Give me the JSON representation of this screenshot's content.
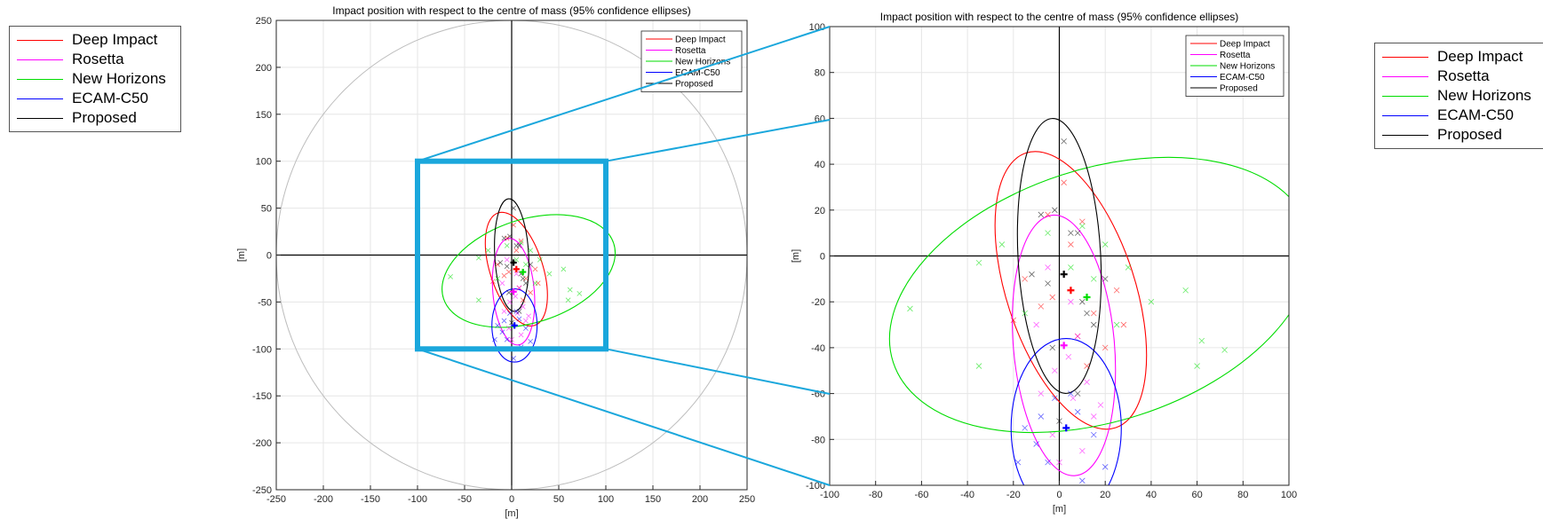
{
  "legend_entries": [
    {
      "name": "Deep Impact",
      "color": "#ff0000"
    },
    {
      "name": "Rosetta",
      "color": "#ff00ff"
    },
    {
      "name": "New Horizons",
      "color": "#00dd00"
    },
    {
      "name": "ECAM-C50",
      "color": "#0000ff"
    },
    {
      "name": "Proposed",
      "color": "#000000"
    }
  ],
  "chart_data": [
    {
      "type": "scatter",
      "title": "Impact position with respect to the centre of mass (95% confidence ellipses)",
      "xlabel": "[m]",
      "ylabel": "[m]",
      "xlim": [
        -250,
        250
      ],
      "ylim": [
        -250,
        250
      ],
      "xticks": [
        -250,
        -200,
        -150,
        -100,
        -50,
        0,
        50,
        100,
        150,
        200,
        250
      ],
      "yticks": [
        -250,
        -200,
        -150,
        -100,
        -50,
        0,
        50,
        100,
        150,
        200,
        250
      ],
      "grid": true,
      "legend_position": "top-right",
      "boundary_circle": {
        "cx": 0,
        "cy": 0,
        "r": 250
      },
      "zoom_box": [
        -100,
        100,
        -100,
        100
      ],
      "series": [
        {
          "name": "Deep Impact",
          "color": "#ff0000",
          "mean": [
            5,
            -15
          ],
          "ellipse": {
            "cx": 5,
            "cy": -15,
            "rx": 28,
            "ry": 63,
            "angle": -18
          },
          "points": [
            [
              2,
              32
            ],
            [
              -5,
              18
            ],
            [
              10,
              15
            ],
            [
              -15,
              -10
            ],
            [
              25,
              -15
            ],
            [
              15,
              -25
            ],
            [
              20,
              -40
            ],
            [
              -8,
              -22
            ],
            [
              8,
              -35
            ],
            [
              -20,
              -28
            ],
            [
              28,
              -30
            ],
            [
              12,
              -48
            ],
            [
              5,
              5
            ],
            [
              -3,
              -18
            ]
          ]
        },
        {
          "name": "Rosetta",
          "color": "#ff00ff",
          "mean": [
            2,
            -39
          ],
          "ellipse": {
            "cx": 2,
            "cy": -39,
            "rx": 22,
            "ry": 57,
            "angle": -5
          },
          "points": [
            [
              -5,
              -5
            ],
            [
              5,
              -20
            ],
            [
              -10,
              -30
            ],
            [
              8,
              -35
            ],
            [
              -2,
              -50
            ],
            [
              12,
              -55
            ],
            [
              6,
              -62
            ],
            [
              15,
              -70
            ],
            [
              -3,
              -78
            ],
            [
              10,
              -85
            ],
            [
              0,
              -90
            ],
            [
              18,
              -65
            ],
            [
              4,
              -44
            ],
            [
              -8,
              -60
            ]
          ]
        },
        {
          "name": "New Horizons",
          "color": "#00dd00",
          "mean": [
            12,
            -18
          ],
          "ellipse": {
            "cx": 18,
            "cy": -17,
            "rx": 95,
            "ry": 55,
            "angle": -18
          },
          "points": [
            [
              -65,
              -23
            ],
            [
              -35,
              -3
            ],
            [
              -25,
              5
            ],
            [
              -15,
              -25
            ],
            [
              40,
              -20
            ],
            [
              55,
              -15
            ],
            [
              62,
              -37
            ],
            [
              72,
              -41
            ],
            [
              60,
              -48
            ],
            [
              -35,
              -48
            ],
            [
              25,
              -30
            ],
            [
              15,
              -10
            ],
            [
              30,
              -5
            ],
            [
              -5,
              10
            ],
            [
              10,
              13
            ],
            [
              5,
              -5
            ],
            [
              20,
              5
            ]
          ]
        },
        {
          "name": "ECAM-C50",
          "color": "#0000ff",
          "mean": [
            3,
            -75
          ],
          "ellipse": {
            "cx": 3,
            "cy": -75,
            "rx": 24,
            "ry": 39,
            "angle": 0
          },
          "points": [
            [
              -15,
              -75
            ],
            [
              -10,
              -82
            ],
            [
              -5,
              -90
            ],
            [
              -8,
              -70
            ],
            [
              5,
              -60
            ],
            [
              15,
              -78
            ],
            [
              10,
              -98
            ],
            [
              20,
              -92
            ],
            [
              -18,
              -90
            ],
            [
              8,
              -68
            ],
            [
              2,
              -110
            ],
            [
              -2,
              -62
            ]
          ]
        },
        {
          "name": "Proposed",
          "color": "#000000",
          "mean": [
            2,
            -8
          ],
          "ellipse": {
            "cx": 0,
            "cy": 0,
            "rx": 18,
            "ry": 60,
            "angle": -3
          },
          "points": [
            [
              -8,
              18
            ],
            [
              -2,
              20
            ],
            [
              5,
              10
            ],
            [
              8,
              10
            ],
            [
              -12,
              -8
            ],
            [
              10,
              -20
            ],
            [
              -5,
              -12
            ],
            [
              15,
              -30
            ],
            [
              -3,
              -40
            ],
            [
              8,
              -60
            ],
            [
              0,
              -72
            ],
            [
              12,
              -25
            ],
            [
              2,
              50
            ],
            [
              20,
              -10
            ]
          ]
        }
      ]
    },
    {
      "type": "scatter",
      "title": "Impact position with respect to the centre of mass (95% confidence ellipses)",
      "xlabel": "[m]",
      "ylabel": "[m]",
      "xlim": [
        -100,
        100
      ],
      "ylim": [
        -100,
        100
      ],
      "xticks": [
        -100,
        -80,
        -60,
        -40,
        -20,
        0,
        20,
        40,
        60,
        80,
        100
      ],
      "yticks": [
        -100,
        -80,
        -60,
        -40,
        -20,
        0,
        20,
        40,
        60,
        80,
        100
      ],
      "grid": true,
      "legend_position": "top-right"
    }
  ]
}
